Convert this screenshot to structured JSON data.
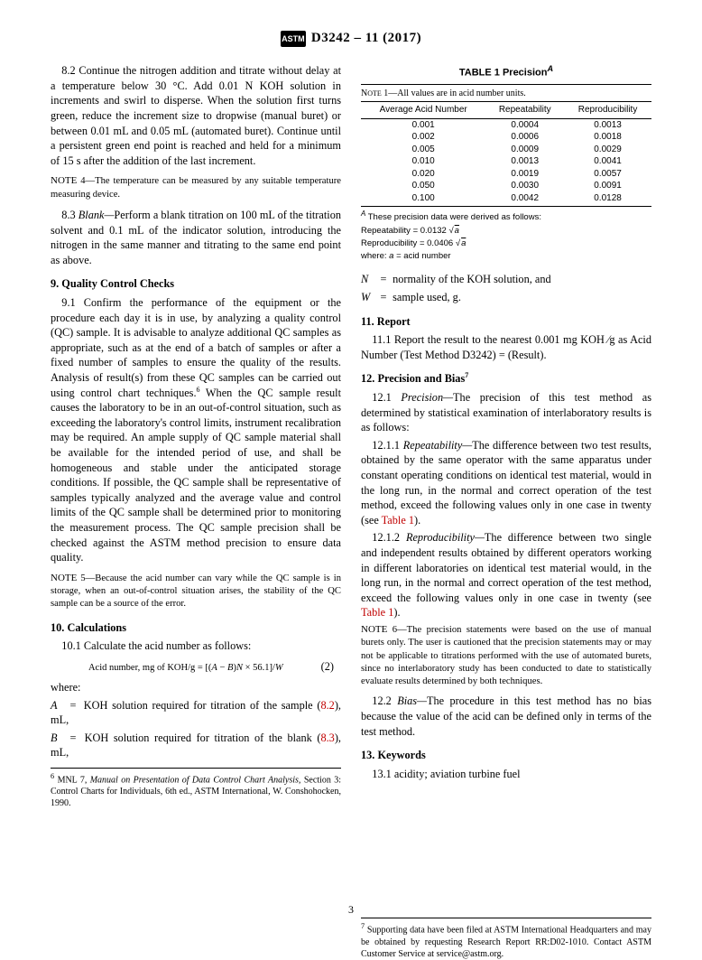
{
  "header": {
    "logo_text": "ASTM",
    "designation": "D3242 – 11 (2017)"
  },
  "page_number": "3",
  "table1": {
    "title": "TABLE 1 Precision",
    "title_sup": "A",
    "note_top": "NOTE 1—All values are in acid number units.",
    "columns": [
      "Average Acid Number",
      "Repeatability",
      "Reproducibility"
    ],
    "rows": [
      [
        "0.001",
        "0.0004",
        "0.0013"
      ],
      [
        "0.002",
        "0.0006",
        "0.0018"
      ],
      [
        "0.005",
        "0.0009",
        "0.0029"
      ],
      [
        "0.010",
        "0.0013",
        "0.0041"
      ],
      [
        "0.020",
        "0.0019",
        "0.0057"
      ],
      [
        "0.050",
        "0.0030",
        "0.0091"
      ],
      [
        "0.100",
        "0.0042",
        "0.0128"
      ]
    ],
    "footnote_lead": "These precision data were derived as follows:",
    "footnote_sup": "A",
    "repeatability_label": "Repeatability",
    "repeatability_coef": "= 0.0132",
    "reproducibility_label": "Reproducibility",
    "reproducibility_coef": "= 0.0406",
    "sqrt_var": "a",
    "where_line": "where: ",
    "where_def": " = acid number",
    "where_sym": "a"
  },
  "left": {
    "p82": "8.2 Continue the nitrogen addition and titrate without delay at a temperature below 30 °C. Add 0.01 N KOH solution in increments and swirl to disperse. When the solution first turns green, reduce the increment size to dropwise (manual buret) or between 0.01 mL and 0.05 mL (automated buret). Continue until a persistent green end point is reached and held for a minimum of 15 s after the addition of the last increment.",
    "note4": "NOTE 4—The temperature can be measured by any suitable temperature measuring device.",
    "p83_lead": "8.3 ",
    "p83_em": "Blank—",
    "p83": "Perform a blank titration on 100 mL of the titration solvent and 0.1 mL of the indicator solution, introducing the nitrogen in the same manner and titrating to the same end point as above.",
    "h9": "9.  Quality Control Checks",
    "p91_a": "9.1 Confirm the performance of the equipment or the procedure each day it is in use, by analyzing a quality control (QC) sample. It is advisable to analyze additional QC samples as appropriate, such as at the end of a batch of samples or after a fixed number of samples to ensure the quality of the results. Analysis of result(s) from these QC samples can be carried out using control chart techniques.",
    "p91_b": " When the QC sample result causes the laboratory to be in an out-of-control situation, such as exceeding the laboratory's control limits, instrument recalibration may be required. An ample supply of QC sample material shall be available for the intended period of use, and shall be homogeneous and stable under the anticipated storage conditions. If possible, the QC sample shall be representative of samples typically analyzed and the average value and control limits of the QC sample shall be determined prior to monitoring the measurement process. The QC sample precision shall be checked against the ASTM method precision to ensure data quality.",
    "note5": "NOTE 5—Because the acid number can vary while the QC sample is in storage, when an out-of-control situation arises, the stability of the QC sample can be a source of the error.",
    "h10": "10.  Calculations",
    "p101": "10.1 Calculate the acid number as follows:",
    "eq2_label": "Acid number, mg of KOH/g = ",
    "eq2_body": "[(A − B)N × 56.1]/W",
    "eq2_tag": "(2)",
    "where_label": "where:",
    "whereA_sym": "A",
    "whereA": "KOH solution required for titration of the sample (",
    "whereA_ref": "8.2",
    "whereA_tail": "), mL,",
    "whereB_sym": "B",
    "whereB": "KOH solution required for titration of the blank (",
    "whereB_ref": "8.3",
    "whereB_tail": "), mL,",
    "fn6_a": " MNL 7, ",
    "fn6_em": "Manual on Presentation of Data Control Chart Analysis,",
    "fn6_b": " Section 3: Control Charts for Individuals, 6th ed., ASTM International, W. Conshohocken, 1990."
  },
  "right": {
    "whereN_sym": "N",
    "whereN": "normality of the KOH solution, and",
    "whereW_sym": "W",
    "whereW": "sample used, g.",
    "h11": "11.  Report",
    "p111": "11.1 Report the result to the nearest 0.001 mg KOH ⁄g as Acid Number (Test Method D3242) = (Result).",
    "h12": "12.  Precision and Bias",
    "p121_lead": "12.1 ",
    "p121_em": "Precision—",
    "p121": "The precision of this test method as determined by statistical examination of interlaboratory results is as follows:",
    "p1211_lead": "12.1.1 ",
    "p1211_em": "Repeatability—",
    "p1211": "The difference between two test results, obtained by the same operator with the same apparatus under constant operating conditions on identical test material, would in the long run, in the normal and correct operation of the test method, exceed the following values only in one case in twenty (see ",
    "p1211_ref": "Table 1",
    "p1211_tail": ").",
    "p1212_lead": "12.1.2 ",
    "p1212_em": "Reproducibility—",
    "p1212": "The difference between two single and independent results obtained by different operators working in different laboratories on identical test material would, in the long run, in the normal and correct operation of the test method, exceed the following values only in one case in twenty (see ",
    "p1212_ref": "Table 1",
    "p1212_tail": ").",
    "note6": "NOTE 6—The precision statements were based on the use of manual burets only. The user is cautioned that the precision statements may or may not be applicable to titrations performed with the use of automated burets, since no interlaboratory study has been conducted to date to statistically evaluate results determined by both techniques.",
    "p122_lead": "12.2 ",
    "p122_em": "Bias—",
    "p122": "The procedure in this test method has no bias because the value of the acid can be defined only in terms of the test method.",
    "h13": "13.  Keywords",
    "p131": "13.1  acidity; aviation turbine fuel",
    "fn7": " Supporting data have been filed at ASTM International Headquarters and may be obtained by requesting Research Report RR:D02-1010. Contact ASTM Customer Service at service@astm.org."
  }
}
